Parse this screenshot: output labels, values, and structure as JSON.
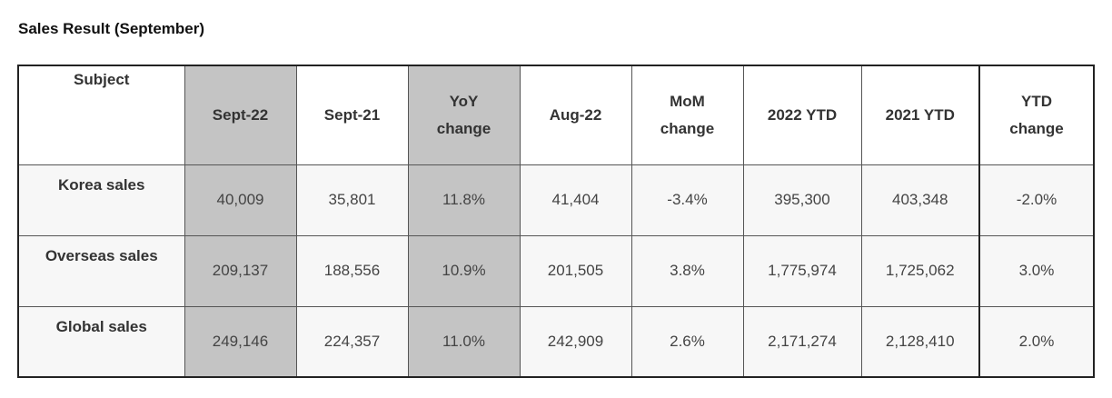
{
  "title": "Sales Result (September)",
  "columns": [
    "Subject",
    "Sept-22",
    "Sept-21",
    "YoY change",
    "Aug-22",
    "MoM change",
    "2022 YTD",
    "2021 YTD",
    "YTD change"
  ],
  "rows": [
    {
      "subject": "Korea sales",
      "values": [
        "40,009",
        "35,801",
        "11.8%",
        "41,404",
        "-3.4%",
        "395,300",
        "403,348",
        "-2.0%"
      ]
    },
    {
      "subject": "Overseas sales",
      "values": [
        "209,137",
        "188,556",
        "10.9%",
        "201,505",
        "3.8%",
        "1,775,974",
        "1,725,062",
        "3.0%"
      ]
    },
    {
      "subject": "Global sales",
      "values": [
        "249,146",
        "224,357",
        "11.0%",
        "242,909",
        "2.6%",
        "2,171,274",
        "2,128,410",
        "2.0%"
      ]
    }
  ],
  "colors": {
    "shaded_column": "#c4c4c4",
    "row_background": "#f7f7f7",
    "border": "#222222"
  }
}
